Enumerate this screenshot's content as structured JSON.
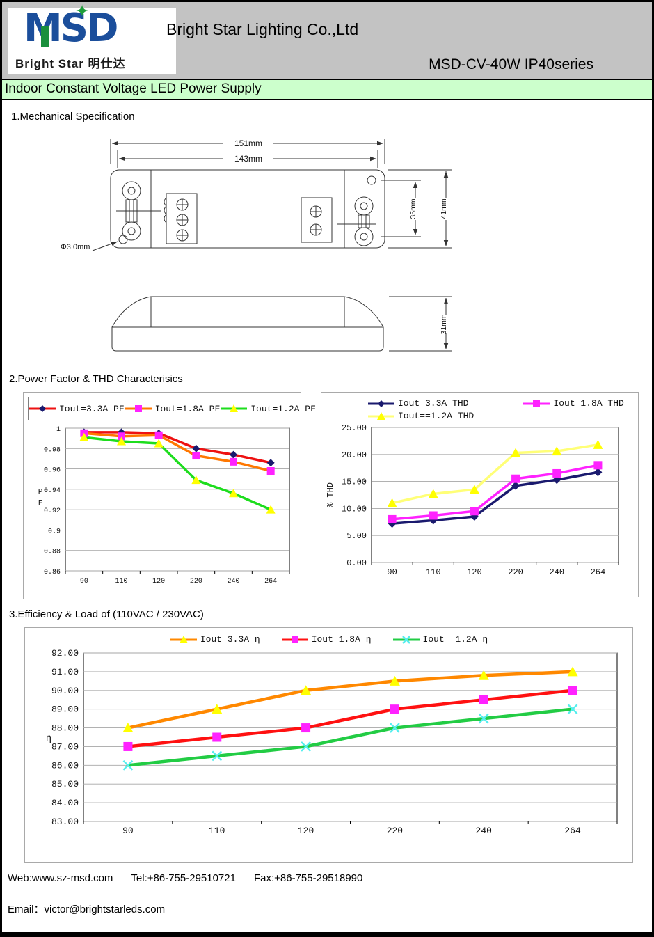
{
  "header": {
    "company": "Bright Star Lighting Co.,Ltd",
    "series": "MSD-CV-40W IP40series",
    "logo_brand": "MSD",
    "logo_star": "✦",
    "logo_sub": "Bright Star 明仕达"
  },
  "title_bar": "Indoor Constant Voltage LED Power Supply",
  "sections": {
    "s1": "1.Mechanical Specification",
    "s2": "2.Power Factor & THD Characterisics",
    "s3": "3.Efficiency & Load of (110VAC / 230VAC)"
  },
  "drawing": {
    "dim_width_outer": "151mm",
    "dim_width_inner": "143mm",
    "dim_height_inner": "35mm",
    "dim_height_outer": "41mm",
    "dim_side_height": "31mm",
    "dim_hole": "Φ3.0mm"
  },
  "footer": {
    "web": "Web:www.sz-msd.com",
    "tel": "Tel:+86-755-29510721",
    "fax": "Fax:+86-755-29518990",
    "email": "Email：victor@brightstarleds.com"
  },
  "colors": {
    "header_bg": "#c3c3c3",
    "title_bar_bg": "#ccffcc",
    "logo_blue": "#1b4e9b",
    "logo_green": "#1f9d3a",
    "gridline": "#a6a6a6"
  },
  "chart_data": [
    {
      "id": "pf",
      "type": "line",
      "categories": [
        "90",
        "110",
        "120",
        "220",
        "240",
        "264"
      ],
      "xlabel": "",
      "ylabel": "P F",
      "ylim": [
        0.86,
        1.0
      ],
      "grid": true,
      "legend_position": "top-boxed",
      "legend_rows": [
        [
          0,
          1,
          2
        ]
      ],
      "yticks": [
        {
          "v": 1,
          "label": "1"
        },
        {
          "v": 0.98,
          "label": "0.98"
        },
        {
          "v": 0.96,
          "label": "0.96"
        },
        {
          "v": 0.94,
          "label": "0.94"
        },
        {
          "v": 0.92,
          "label": "0.92"
        },
        {
          "v": 0.9,
          "label": "0.9"
        },
        {
          "v": 0.88,
          "label": "0.88"
        },
        {
          "v": 0.86,
          "label": "0.86"
        }
      ],
      "series": [
        {
          "name": "Iout=3.3A PF",
          "line_color": "#ee1111",
          "marker": "diamond",
          "marker_color": "#1a1a6e",
          "values": [
            0.996,
            0.996,
            0.995,
            0.98,
            0.974,
            0.966
          ]
        },
        {
          "name": "Iout=1.8A PF",
          "line_color": "#ff7700",
          "marker": "square",
          "marker_color": "#ff22ff",
          "values": [
            0.995,
            0.992,
            0.993,
            0.973,
            0.967,
            0.958
          ]
        },
        {
          "name": "Iout=1.2A PF",
          "line_color": "#1ddd1d",
          "marker": "triangle",
          "marker_color": "#ffff00",
          "values": [
            0.991,
            0.987,
            0.985,
            0.949,
            0.936,
            0.92
          ]
        }
      ]
    },
    {
      "id": "thd",
      "type": "line",
      "categories": [
        "90",
        "110",
        "120",
        "220",
        "240",
        "264"
      ],
      "xlabel": "",
      "ylabel": "% THD",
      "ylim": [
        0,
        25
      ],
      "grid": true,
      "legend_position": "top",
      "legend_rows": [
        [
          0,
          1
        ],
        [
          2
        ]
      ],
      "yticks": [
        {
          "v": 25,
          "label": "25.00"
        },
        {
          "v": 20,
          "label": "20.00"
        },
        {
          "v": 15,
          "label": "15.00"
        },
        {
          "v": 10,
          "label": "10.00"
        },
        {
          "v": 5,
          "label": "5.00"
        },
        {
          "v": 0,
          "label": "0.00"
        }
      ],
      "series": [
        {
          "name": "Iout=3.3A THD",
          "line_color": "#1a1a6e",
          "marker": "diamond",
          "marker_color": "#1a1a6e",
          "values": [
            7.2,
            7.8,
            8.5,
            14.2,
            15.3,
            16.7
          ]
        },
        {
          "name": "Iout=1.8A THD",
          "line_color": "#ff22ff",
          "marker": "square",
          "marker_color": "#ff22ff",
          "values": [
            8.0,
            8.7,
            9.5,
            15.5,
            16.5,
            18.0
          ]
        },
        {
          "name": "Iout==1.2A THD",
          "line_color": "#ffff77",
          "marker": "triangle",
          "marker_color": "#ffff00",
          "values": [
            11.0,
            12.7,
            13.5,
            20.3,
            20.6,
            21.8
          ]
        }
      ]
    },
    {
      "id": "eff",
      "type": "line",
      "categories": [
        "90",
        "110",
        "120",
        "220",
        "240",
        "264"
      ],
      "xlabel": "",
      "ylabel": "η",
      "ylim": [
        83,
        92
      ],
      "grid": true,
      "legend_position": "top-center",
      "legend_rows": [
        [
          0,
          1,
          2
        ]
      ],
      "yticks": [
        {
          "v": 92,
          "label": "92.00"
        },
        {
          "v": 91,
          "label": "91.00"
        },
        {
          "v": 90,
          "label": "90.00"
        },
        {
          "v": 89,
          "label": "89.00"
        },
        {
          "v": 88,
          "label": "88.00"
        },
        {
          "v": 87,
          "label": "87.00"
        },
        {
          "v": 86,
          "label": "86.00"
        },
        {
          "v": 85,
          "label": "85.00"
        },
        {
          "v": 84,
          "label": "84.00"
        },
        {
          "v": 83,
          "label": "83.00"
        }
      ],
      "series": [
        {
          "name": "Iout=3.3A  η",
          "line_color": "#ff8800",
          "marker": "triangle",
          "marker_color": "#ffff00",
          "values": [
            88.0,
            89.0,
            90.0,
            90.5,
            90.8,
            91.0
          ]
        },
        {
          "name": "Iout=1.8A  η",
          "line_color": "#ff1111",
          "marker": "square",
          "marker_color": "#ff22ff",
          "values": [
            87.0,
            87.5,
            88.0,
            89.0,
            89.5,
            90.0
          ]
        },
        {
          "name": "Iout==1.2A  η",
          "line_color": "#22cc44",
          "marker": "x",
          "marker_color": "#55eeee",
          "values": [
            86.0,
            86.5,
            87.0,
            88.0,
            88.5,
            89.0
          ]
        }
      ]
    }
  ]
}
